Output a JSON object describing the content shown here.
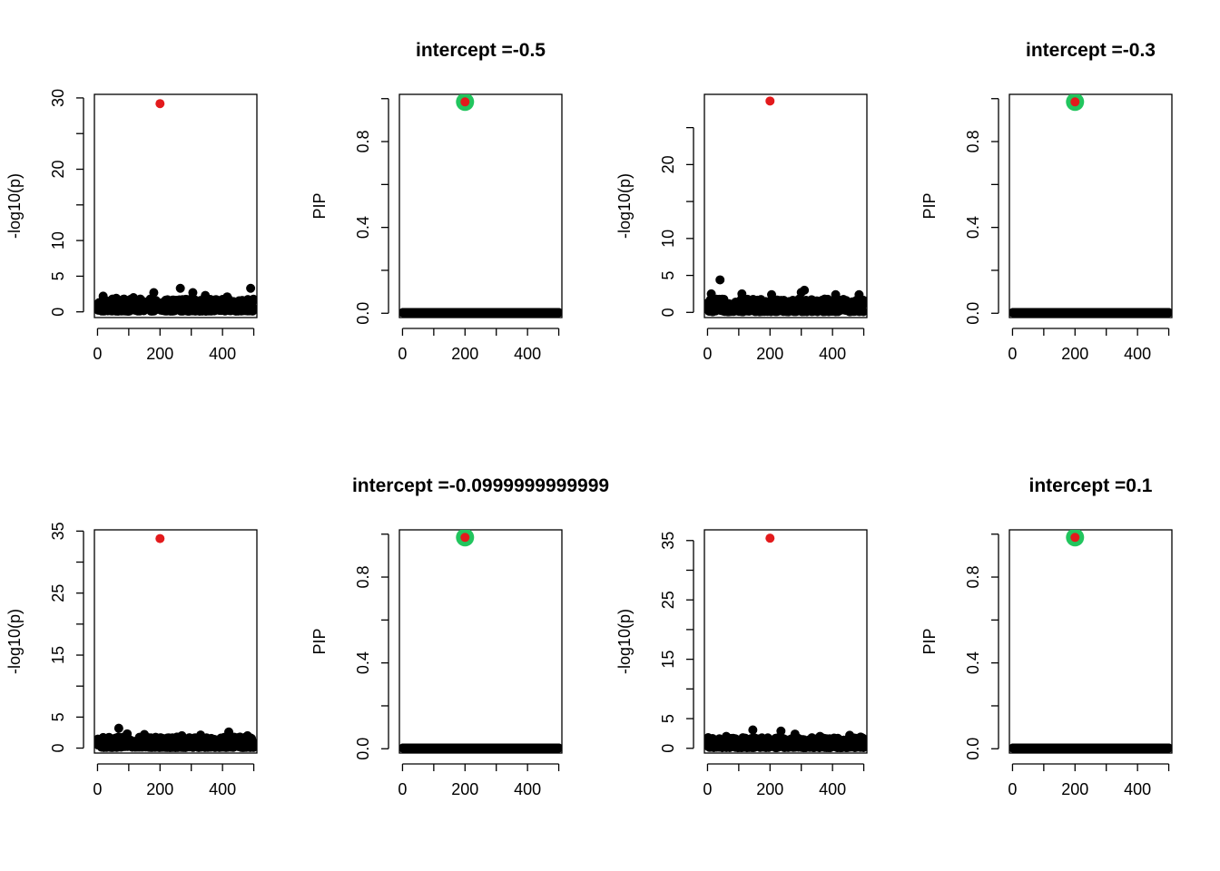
{
  "figure": {
    "layout": "2 rows x 4 columns"
  },
  "colors": {
    "background": "#ffffff",
    "points": "#000000",
    "highlight_point": "#e31a1c",
    "highlight_ring": "#22c55e",
    "axis": "#000000"
  },
  "chart_data": [
    {
      "type": "scatter",
      "title": "",
      "xlabel": "",
      "ylabel": "-log10(p)",
      "xlim": [
        -10,
        510
      ],
      "ylim": [
        -0.8,
        30.5
      ],
      "xticks": [
        0,
        100,
        200,
        300,
        400,
        500
      ],
      "xtick_labels": [
        "0",
        "",
        "200",
        "",
        "400",
        ""
      ],
      "yticks": [
        0,
        5,
        10,
        15,
        20,
        25,
        30
      ],
      "ytick_labels": [
        "0",
        "5",
        "10",
        "",
        "20",
        "",
        "30"
      ],
      "n_points": 500,
      "baseline_range": [
        0.1,
        1.8
      ],
      "extra_points": [
        [
          18,
          2.2
        ],
        [
          60,
          1.9
        ],
        [
          115,
          2.0
        ],
        [
          180,
          2.7
        ],
        [
          265,
          3.3
        ],
        [
          305,
          2.7
        ],
        [
          345,
          2.3
        ],
        [
          415,
          2.1
        ],
        [
          490,
          3.3
        ]
      ],
      "highlight": {
        "x": 200,
        "y": 29.2,
        "ring": false
      }
    },
    {
      "type": "scatter",
      "title": "intercept =-0.5",
      "xlabel": "",
      "ylabel": "PIP",
      "xlim": [
        -10,
        510
      ],
      "ylim": [
        -0.02,
        1.02
      ],
      "xticks": [
        0,
        100,
        200,
        300,
        400,
        500
      ],
      "xtick_labels": [
        "0",
        "",
        "200",
        "",
        "400",
        ""
      ],
      "yticks": [
        0,
        0.2,
        0.4,
        0.6,
        0.8,
        1.0
      ],
      "ytick_labels": [
        "0.0",
        "",
        "0.4",
        "",
        "0.8",
        ""
      ],
      "n_points": 500,
      "baseline_value": 0.003,
      "highlight": {
        "x": 200,
        "y": 0.985,
        "ring": true
      }
    },
    {
      "type": "scatter",
      "title": "",
      "xlabel": "",
      "ylabel": "-log10(p)",
      "xlim": [
        -10,
        510
      ],
      "ylim": [
        -0.7,
        29.5
      ],
      "xticks": [
        0,
        100,
        200,
        300,
        400,
        500
      ],
      "xtick_labels": [
        "0",
        "",
        "200",
        "",
        "400",
        ""
      ],
      "yticks": [
        0,
        5,
        10,
        15,
        20,
        25
      ],
      "ytick_labels": [
        "0",
        "5",
        "10",
        "",
        "20",
        ""
      ],
      "n_points": 500,
      "baseline_range": [
        0.1,
        1.8
      ],
      "extra_points": [
        [
          40,
          4.4
        ],
        [
          12,
          2.5
        ],
        [
          110,
          2.5
        ],
        [
          205,
          2.4
        ],
        [
          300,
          2.7
        ],
        [
          310,
          3.0
        ],
        [
          410,
          2.4
        ],
        [
          485,
          2.4
        ]
      ],
      "highlight": {
        "x": 200,
        "y": 28.6,
        "ring": false
      }
    },
    {
      "type": "scatter",
      "title": "intercept =-0.3",
      "xlabel": "",
      "ylabel": "PIP",
      "xlim": [
        -10,
        510
      ],
      "ylim": [
        -0.02,
        1.02
      ],
      "xticks": [
        0,
        100,
        200,
        300,
        400,
        500
      ],
      "xtick_labels": [
        "0",
        "",
        "200",
        "",
        "400",
        ""
      ],
      "yticks": [
        0,
        0.2,
        0.4,
        0.6,
        0.8,
        1.0
      ],
      "ytick_labels": [
        "0.0",
        "",
        "0.4",
        "",
        "0.8",
        ""
      ],
      "n_points": 500,
      "baseline_value": 0.003,
      "highlight": {
        "x": 200,
        "y": 0.985,
        "ring": true
      }
    },
    {
      "type": "scatter",
      "title": "",
      "xlabel": "",
      "ylabel": "-log10(p)",
      "xlim": [
        -10,
        510
      ],
      "ylim": [
        -0.8,
        35.2
      ],
      "xticks": [
        0,
        100,
        200,
        300,
        400,
        500
      ],
      "xtick_labels": [
        "0",
        "",
        "200",
        "",
        "400",
        ""
      ],
      "yticks": [
        0,
        5,
        10,
        15,
        20,
        25,
        30,
        35
      ],
      "ytick_labels": [
        "0",
        "5",
        "",
        "15",
        "",
        "25",
        "",
        "35"
      ],
      "n_points": 500,
      "baseline_range": [
        0.1,
        1.8
      ],
      "extra_points": [
        [
          68,
          3.2
        ],
        [
          95,
          2.3
        ],
        [
          150,
          2.2
        ],
        [
          270,
          2.0
        ],
        [
          330,
          2.1
        ],
        [
          420,
          2.6
        ],
        [
          480,
          2.0
        ]
      ],
      "highlight": {
        "x": 200,
        "y": 33.8,
        "ring": false
      }
    },
    {
      "type": "scatter",
      "title": "intercept =-0.0999999999999",
      "xlabel": "",
      "ylabel": "PIP",
      "xlim": [
        -10,
        510
      ],
      "ylim": [
        -0.02,
        1.02
      ],
      "xticks": [
        0,
        100,
        200,
        300,
        400,
        500
      ],
      "xtick_labels": [
        "0",
        "",
        "200",
        "",
        "400",
        ""
      ],
      "yticks": [
        0,
        0.2,
        0.4,
        0.6,
        0.8,
        1.0
      ],
      "ytick_labels": [
        "0.0",
        "",
        "0.4",
        "",
        "0.8",
        ""
      ],
      "n_points": 500,
      "baseline_value": 0.003,
      "highlight": {
        "x": 200,
        "y": 0.985,
        "ring": true
      }
    },
    {
      "type": "scatter",
      "title": "",
      "xlabel": "",
      "ylabel": "-log10(p)",
      "xlim": [
        -10,
        510
      ],
      "ylim": [
        -0.8,
        36.8
      ],
      "xticks": [
        0,
        100,
        200,
        300,
        400,
        500
      ],
      "xtick_labels": [
        "0",
        "",
        "200",
        "",
        "400",
        ""
      ],
      "yticks": [
        0,
        5,
        10,
        15,
        20,
        25,
        30,
        35
      ],
      "ytick_labels": [
        "0",
        "5",
        "",
        "15",
        "",
        "25",
        "",
        "35"
      ],
      "n_points": 500,
      "baseline_range": [
        0.1,
        1.8
      ],
      "extra_points": [
        [
          145,
          3.1
        ],
        [
          235,
          2.9
        ],
        [
          280,
          2.4
        ],
        [
          60,
          2.0
        ],
        [
          360,
          2.0
        ],
        [
          455,
          2.2
        ],
        [
          490,
          1.9
        ]
      ],
      "highlight": {
        "x": 200,
        "y": 35.4,
        "ring": false
      }
    },
    {
      "type": "scatter",
      "title": "intercept =0.1",
      "xlabel": "",
      "ylabel": "PIP",
      "xlim": [
        -10,
        510
      ],
      "ylim": [
        -0.02,
        1.02
      ],
      "xticks": [
        0,
        100,
        200,
        300,
        400,
        500
      ],
      "xtick_labels": [
        "0",
        "",
        "200",
        "",
        "400",
        ""
      ],
      "yticks": [
        0,
        0.2,
        0.4,
        0.6,
        0.8,
        1.0
      ],
      "ytick_labels": [
        "0.0",
        "",
        "0.4",
        "",
        "0.8",
        ""
      ],
      "n_points": 500,
      "baseline_value": 0.003,
      "highlight": {
        "x": 200,
        "y": 0.985,
        "ring": true
      }
    }
  ]
}
